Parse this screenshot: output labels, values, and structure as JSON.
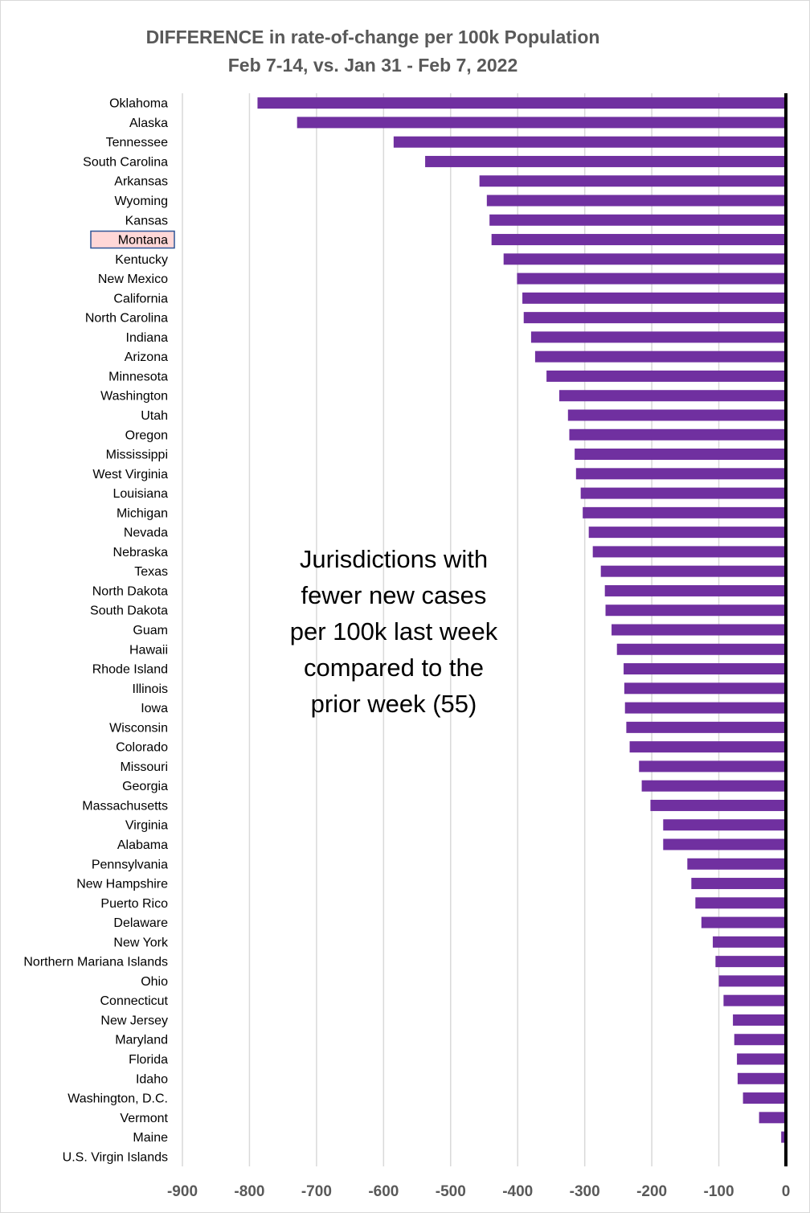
{
  "chart_data": {
    "type": "bar",
    "orientation": "horizontal",
    "title": "DIFFERENCE in rate-of-change per 100k Population",
    "subtitle": "Feb 7-14, vs. Jan 31 - Feb 7, 2022",
    "xlabel": "",
    "ylabel": "",
    "xlim": [
      -900,
      0
    ],
    "xticks": [
      -900,
      -800,
      -700,
      -600,
      -500,
      -400,
      -300,
      -200,
      -100,
      0
    ],
    "xtick_labels": [
      "-900",
      "-800",
      "-700",
      "-600",
      "-500",
      "-400",
      "-300",
      "-200",
      "-100",
      "0"
    ],
    "grid": true,
    "highlighted_category": "Montana",
    "annotation": "Jurisdictions with\nfewer new cases\nper 100k last week\ncompared to the\nprior week (55)",
    "categories": [
      "Oklahoma",
      "Alaska",
      "Tennessee",
      "South Carolina",
      "Arkansas",
      "Wyoming",
      "Kansas",
      "Montana",
      "Kentucky",
      "New Mexico",
      "California",
      "North Carolina",
      "Indiana",
      "Arizona",
      "Minnesota",
      "Washington",
      "Utah",
      "Oregon",
      "Mississippi",
      "West Virginia",
      "Louisiana",
      "Michigan",
      "Nevada",
      "Nebraska",
      "Texas",
      "North Dakota",
      "South Dakota",
      "Guam",
      "Hawaii",
      "Rhode Island",
      "Illinois",
      "Iowa",
      "Wisconsin",
      "Colorado",
      "Missouri",
      "Georgia",
      "Massachusetts",
      "Virginia",
      "Alabama",
      "Pennsylvania",
      "New Hampshire",
      "Puerto Rico",
      "Delaware",
      "New York",
      "Northern Mariana Islands",
      "Ohio",
      "Connecticut",
      "New Jersey",
      "Maryland",
      "Florida",
      "Idaho",
      "Washington, D.C.",
      "Vermont",
      "Maine",
      "U.S. Virgin Islands"
    ],
    "values": [
      -788,
      -729,
      -585,
      -538,
      -457,
      -446,
      -442,
      -439,
      -421,
      -401,
      -393,
      -391,
      -380,
      -374,
      -357,
      -338,
      -325,
      -323,
      -315,
      -313,
      -306,
      -303,
      -294,
      -288,
      -276,
      -270,
      -269,
      -260,
      -252,
      -242,
      -241,
      -240,
      -238,
      -233,
      -219,
      -215,
      -202,
      -183,
      -183,
      -147,
      -141,
      -135,
      -126,
      -109,
      -105,
      -100,
      -93,
      -79,
      -77,
      -73,
      -72,
      -64,
      -40,
      -7,
      -2
    ],
    "colors": {
      "bar": "#7030a0",
      "axis": "#000000",
      "grid": "#d9d9d9",
      "tick_text": "#595959",
      "highlight_fill": "#ffd7d7",
      "highlight_border": "#2f5597"
    }
  }
}
